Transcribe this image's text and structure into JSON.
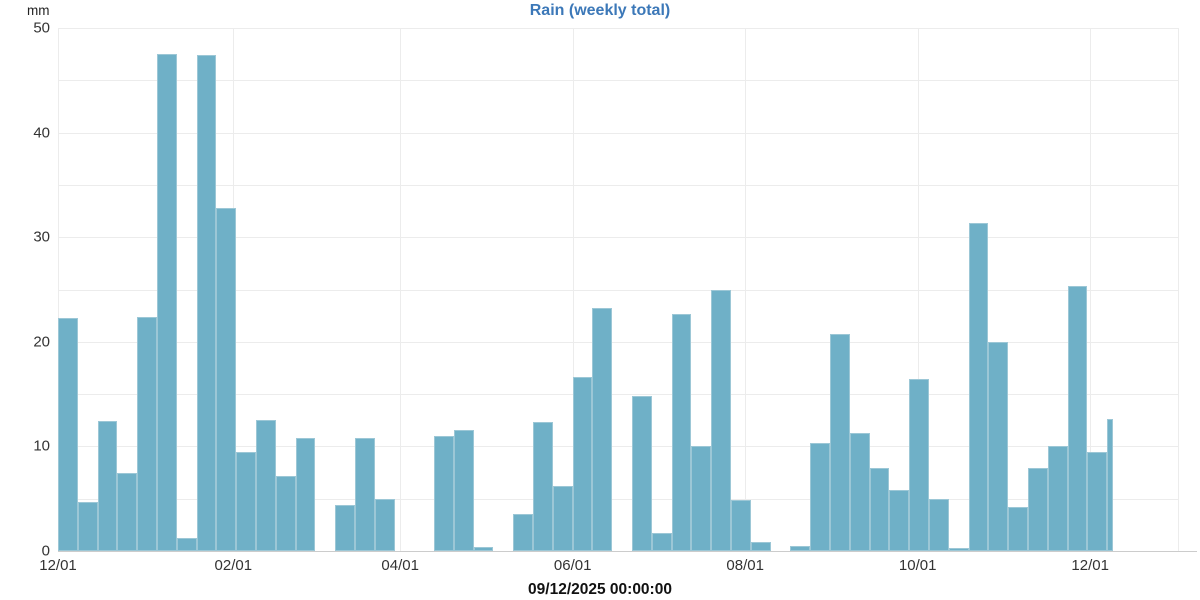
{
  "chart_data": {
    "type": "bar",
    "title": "Rain (weekly total)",
    "y_unit": "mm",
    "x_caption": "09/12/2025 00:00:00",
    "ylabel": "mm",
    "ylim": [
      0,
      50
    ],
    "y_tick_labels": [
      0,
      10,
      20,
      30,
      40,
      50
    ],
    "y_grid_step": 5,
    "grid": true,
    "legend_position": "none",
    "x_ticks": [
      {
        "label": "12/01",
        "week": 0
      },
      {
        "label": "02/01",
        "week": 8.857
      },
      {
        "label": "04/01",
        "week": 17.286
      },
      {
        "label": "06/01",
        "week": 26.0
      },
      {
        "label": "08/01",
        "week": 34.714
      },
      {
        "label": "10/01",
        "week": 43.429
      },
      {
        "label": "12/01",
        "week": 52.143
      }
    ],
    "axis_end_week": 56.58,
    "bar_width_weeks": 1,
    "last_bar_width_ratio": 0.3,
    "series": [
      {
        "name": "Rain (weekly total)",
        "unit": "mm",
        "values": [
          22.3,
          4.7,
          12.4,
          7.5,
          22.4,
          47.5,
          1.2,
          47.4,
          32.8,
          9.5,
          12.5,
          7.2,
          10.8,
          0,
          4.4,
          10.8,
          5.0,
          0,
          0,
          11.0,
          11.6,
          0.4,
          0,
          3.5,
          12.3,
          6.2,
          16.6,
          23.2,
          0,
          14.8,
          1.7,
          22.7,
          10.0,
          25.0,
          4.9,
          0.9,
          0,
          0.5,
          10.3,
          20.7,
          11.3,
          7.9,
          5.8,
          16.4,
          5.0,
          0.3,
          31.4,
          20.0,
          4.2,
          7.9,
          10.0,
          25.3,
          9.5,
          12.6
        ]
      }
    ],
    "colors": {
      "bar_fill": "#6fb0c7",
      "bar_border": "#9cc7d6",
      "grid": "#ececec",
      "axis": "#cccccc",
      "title": "#3c78b8",
      "tick_label": "#333333"
    }
  },
  "layout_note": "weekly rain totals, one bar per week from 12/01 to 12/01; last partial week bar is narrower"
}
